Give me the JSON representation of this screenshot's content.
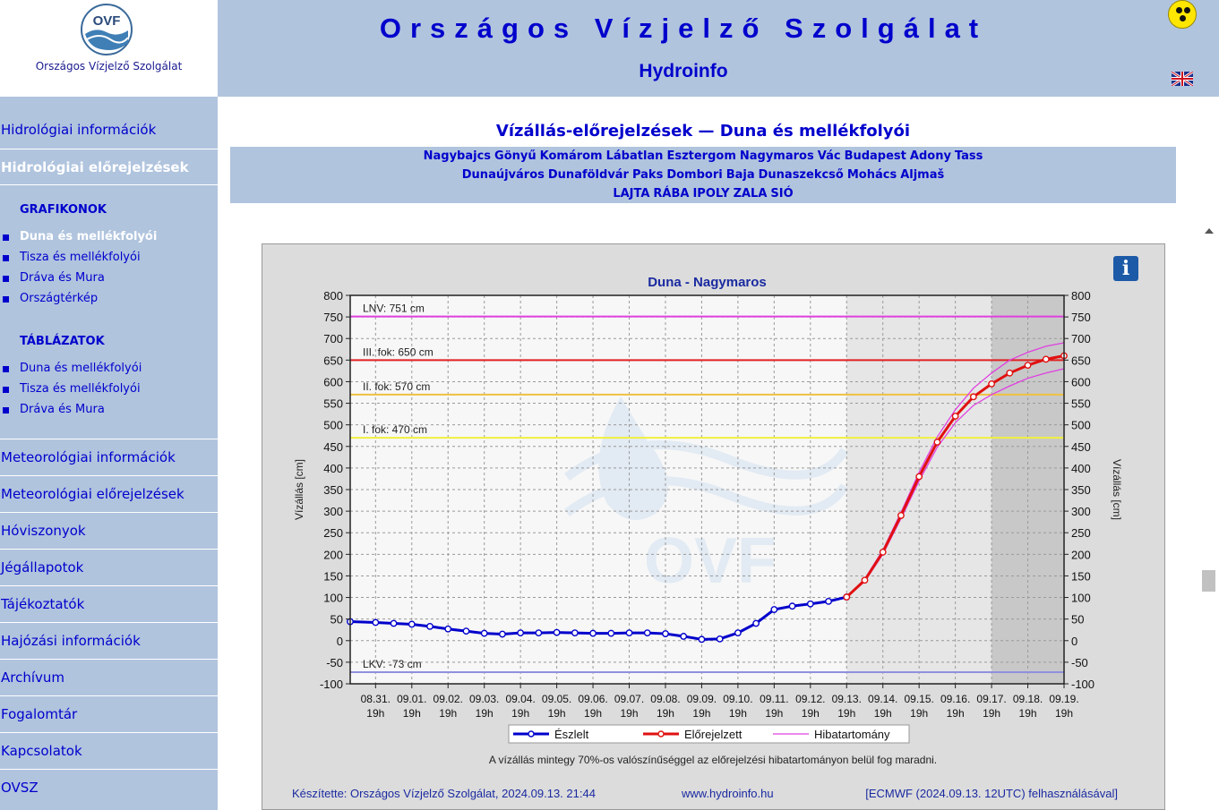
{
  "logo": {
    "mark": "OVF",
    "caption": "Országos Vízjelző Szolgálat"
  },
  "header": {
    "title": "Országos Vízjelző Szolgálat",
    "subtitle": "Hydroinfo",
    "accessibility_icon": "accessibility-icon",
    "language_icon": "uk-flag-icon"
  },
  "sidebar": {
    "top_items": [
      {
        "label": "Hidrológiai információk",
        "active": false
      },
      {
        "label": "Hidrológiai előrejelzések",
        "active": true
      }
    ],
    "graph_head": "GRAFIKONOK",
    "graph_items": [
      {
        "label": "Duna és mellékfolyói",
        "active": true
      },
      {
        "label": "Tisza és mellékfolyói",
        "active": false
      },
      {
        "label": "Dráva és Mura",
        "active": false
      },
      {
        "label": "Országtérkép",
        "active": false
      }
    ],
    "table_head": "TÁBLÁZATOK",
    "table_items": [
      {
        "label": "Duna és mellékfolyói"
      },
      {
        "label": "Tisza és mellékfolyói"
      },
      {
        "label": "Dráva és Mura"
      }
    ],
    "bottom_items": [
      {
        "label": "Meteorológiai információk"
      },
      {
        "label": "Meteorológiai előrejelzések"
      },
      {
        "label": "Hóviszonyok"
      },
      {
        "label": "Jégállapotok"
      },
      {
        "label": "Tájékoztatók"
      },
      {
        "label": "Hajózási információk"
      },
      {
        "label": "Archívum"
      },
      {
        "label": "Fogalomtár"
      },
      {
        "label": "Kapcsolatok"
      },
      {
        "label": "OVSZ"
      }
    ]
  },
  "page": {
    "heading": "Vízállás-előrejelzések — Duna és mellékfolyói",
    "stations_row1": [
      "Nagybajcs",
      "Gönyű",
      "Komárom",
      "Lábatlan",
      "Esztergom",
      "Nagymaros",
      "Vác",
      "Budapest",
      "Adony",
      "Tass"
    ],
    "stations_row2": [
      "Dunaújváros",
      "Dunaföldvár",
      "Paks",
      "Dombori",
      "Baja",
      "Dunaszekcső",
      "Mohács",
      "Aljmaš"
    ],
    "stations_row3": [
      "LAJTA",
      "RÁBA",
      "IPOLY",
      "ZALA",
      "SIÓ"
    ]
  },
  "chart_data": {
    "type": "line",
    "title": "Duna - Nagymaros",
    "ylabel": "Vízállás [cm]",
    "ylim": [
      -100,
      800
    ],
    "yticks": [
      -100,
      -50,
      0,
      50,
      100,
      150,
      200,
      250,
      300,
      350,
      400,
      450,
      500,
      550,
      600,
      650,
      700,
      750,
      800
    ],
    "xticks": [
      "08.31. 19h",
      "09.01. 19h",
      "09.02. 19h",
      "09.03. 19h",
      "09.04. 19h",
      "09.05. 19h",
      "09.06. 19h",
      "09.07. 19h",
      "09.08. 19h",
      "09.09. 19h",
      "09.10. 19h",
      "09.11. 19h",
      "09.12. 19h",
      "09.13. 19h",
      "09.14. 19h",
      "09.15. 19h",
      "09.16. 19h",
      "09.17. 19h",
      "09.18. 19h",
      "09.19. 19h"
    ],
    "xlim_days": [
      -0.7,
      19
    ],
    "threshold_lines": [
      {
        "label": "LNV: 751 cm",
        "value": 751,
        "color": "#e040e0"
      },
      {
        "label": "III. fok: 650 cm",
        "value": 650,
        "color": "#e02020"
      },
      {
        "label": "II. fok: 570 cm",
        "value": 570,
        "color": "#f0c040"
      },
      {
        "label": "I. fok: 470 cm",
        "value": 470,
        "color": "#f0f040"
      },
      {
        "label": "LKV: -73 cm",
        "value": -73,
        "color": "#9090e0"
      }
    ],
    "shaded_regions": [
      {
        "from_day": 13,
        "to_day": 17,
        "color": "#e6e6e6"
      },
      {
        "from_day": 17,
        "to_day": 19,
        "color": "#c8c8c8"
      }
    ],
    "series": [
      {
        "name": "Észlelt",
        "color": "#0000cc",
        "x_days": [
          -0.7,
          0,
          0.5,
          1,
          1.5,
          2,
          2.5,
          3,
          3.5,
          4,
          4.5,
          5,
          5.5,
          6,
          6.5,
          7,
          7.5,
          8,
          8.5,
          9,
          9.5,
          10,
          10.5,
          11,
          11.5,
          12,
          12.5,
          13
        ],
        "values": [
          44,
          42,
          40,
          38,
          33,
          27,
          22,
          17,
          15,
          18,
          18,
          19,
          18,
          17,
          17,
          18,
          18,
          16,
          10,
          3,
          4,
          18,
          40,
          72,
          80,
          85,
          91,
          101
        ]
      },
      {
        "name": "Előrejelzett",
        "color": "#e01010",
        "x_days": [
          13,
          13.5,
          14,
          14.5,
          15,
          15.5,
          16,
          16.5,
          17,
          17.5,
          18,
          18.5,
          19
        ],
        "values": [
          101,
          140,
          205,
          290,
          380,
          460,
          520,
          565,
          595,
          620,
          638,
          652,
          660
        ]
      },
      {
        "name": "Hibatartomány",
        "color": "#e040e0",
        "x_days": [
          13,
          13.5,
          14,
          14.5,
          15,
          15.5,
          16,
          16.5,
          17,
          17.5,
          18,
          18.5,
          19
        ],
        "upper": [
          101,
          143,
          210,
          297,
          390,
          472,
          535,
          585,
          620,
          650,
          668,
          682,
          690
        ],
        "lower": [
          101,
          137,
          200,
          283,
          370,
          448,
          505,
          545,
          570,
          590,
          608,
          620,
          630
        ]
      }
    ],
    "note": "A vízállás mintegy 70%-os valószínűséggel az előrejelzési hibatartományon belül fog maradni.",
    "footer_left": "Készítette: Országos Vízjelző Szolgálat, 2024.09.13. 21:44",
    "footer_mid": "www.hydroinfo.hu",
    "footer_right": "[ECMWF (2024.09.13. 12UTC) felhasználásával]",
    "watermark": "OVF"
  }
}
